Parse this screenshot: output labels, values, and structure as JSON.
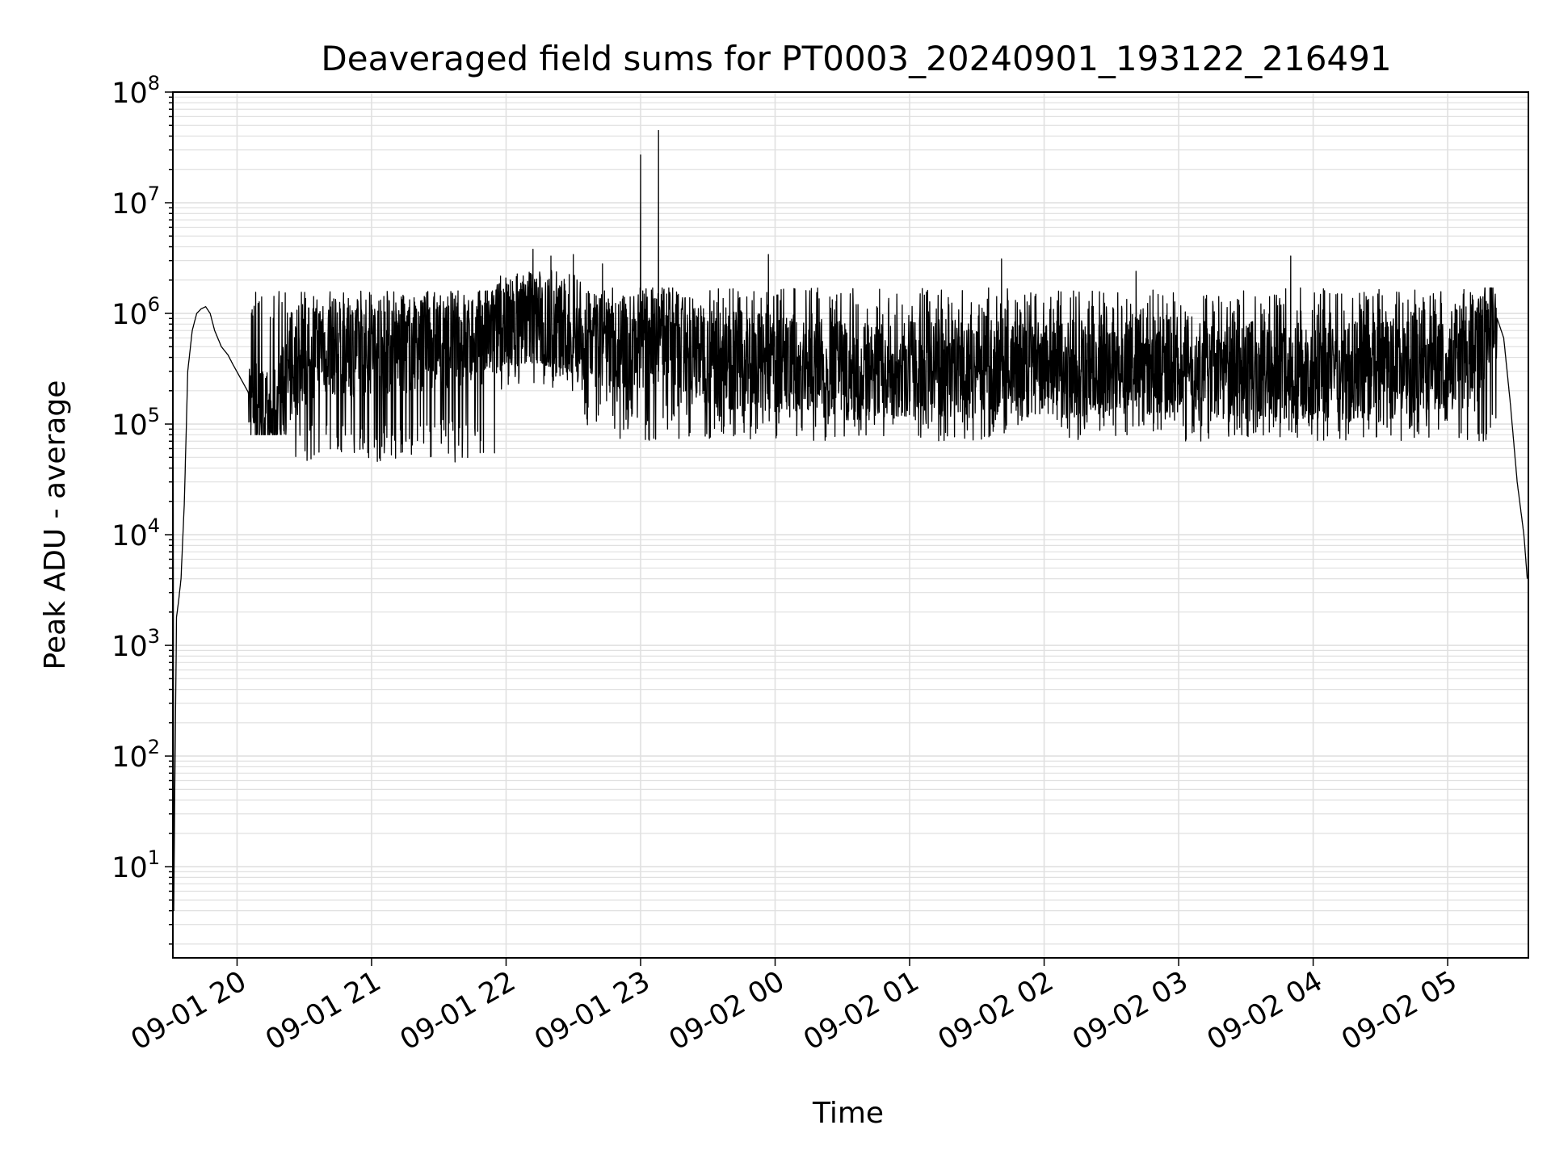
{
  "chart_data": {
    "type": "line",
    "title": "Deaveraged field sums for PT0003_20240901_193122_216491",
    "xlabel": "Time",
    "ylabel": "Peak ADU - average",
    "yscale": "log",
    "ylim": [
      1.5,
      100000000
    ],
    "xlim": [
      "2024-09-01 19:31:22",
      "2024-09-02 05:36:00"
    ],
    "x_ticks": [
      "09-01 20",
      "09-01 21",
      "09-01 22",
      "09-01 23",
      "09-02 00",
      "09-02 01",
      "09-02 02",
      "09-02 03",
      "09-02 04",
      "09-02 05"
    ],
    "y_ticks": [
      {
        "base": "10",
        "exp": "1",
        "value": 10
      },
      {
        "base": "10",
        "exp": "2",
        "value": 100
      },
      {
        "base": "10",
        "exp": "3",
        "value": 1000
      },
      {
        "base": "10",
        "exp": "4",
        "value": 10000
      },
      {
        "base": "10",
        "exp": "5",
        "value": 100000
      },
      {
        "base": "10",
        "exp": "6",
        "value": 1000000
      },
      {
        "base": "10",
        "exp": "7",
        "value": 10000000
      },
      {
        "base": "10",
        "exp": "8",
        "value": 100000000
      }
    ],
    "grid": true,
    "line_color": "#000000",
    "grid_color": "#e0e0e0",
    "series": [
      {
        "x": [
          "2024-09-01 19:31:30",
          "2024-09-01 19:31:45",
          "2024-09-01 19:32:10",
          "2024-09-01 19:33:00",
          "2024-09-01 19:34:00",
          "2024-09-01 19:35:00",
          "2024-09-01 19:36:30",
          "2024-09-01 19:38:00",
          "2024-09-01 19:40:00",
          "2024-09-01 19:42:00",
          "2024-09-01 19:44:00",
          "2024-09-01 19:46:00",
          "2024-09-01 19:48:00",
          "2024-09-01 19:50:00",
          "2024-09-01 19:53:00",
          "2024-09-01 19:56:00",
          "2024-09-01 19:58:00",
          "2024-09-01 20:02:00",
          "2024-09-01 20:08:00",
          "2024-09-01 20:15:00",
          "2024-09-01 20:25:00",
          "2024-09-01 20:35:00",
          "2024-09-01 20:50:00",
          "2024-09-01 21:10:00",
          "2024-09-01 21:30:00",
          "2024-09-01 21:50:00",
          "2024-09-01 22:10:00",
          "2024-09-01 22:30:00",
          "2024-09-01 22:50:00",
          "2024-09-01 23:10:00",
          "2024-09-01 23:30:00",
          "2024-09-02 00:00:00",
          "2024-09-02 00:30:00",
          "2024-09-02 01:00:00",
          "2024-09-02 01:30:00",
          "2024-09-02 02:00:00",
          "2024-09-02 02:30:00",
          "2024-09-02 03:00:00",
          "2024-09-02 03:30:00",
          "2024-09-02 04:00:00",
          "2024-09-02 04:30:00",
          "2024-09-02 05:00:00",
          "2024-09-02 05:15:00",
          "2024-09-02 05:20:00",
          "2024-09-02 05:25:00",
          "2024-09-02 05:28:00",
          "2024-09-02 05:31:00",
          "2024-09-02 05:34:00",
          "2024-09-02 05:35:30"
        ],
        "y": [
          130000,
          4,
          40,
          1800,
          2600,
          4000,
          20000,
          300000,
          700000,
          1000000,
          1100000,
          1150000,
          1000000,
          700000,
          500000,
          420000,
          350000,
          250000,
          150000,
          100000,
          300000,
          500000,
          500000,
          500000,
          600000,
          600000,
          1000000,
          600000,
          500000,
          700000,
          400000,
          350000,
          300000,
          300000,
          350000,
          300000,
          350000,
          350000,
          300000,
          300000,
          300000,
          400000,
          600000,
          1200000,
          600000,
          150000,
          30000,
          10000,
          4000
        ],
        "noise": {
          "segments": [
            {
              "from": "2024-09-01 20:05:00",
              "to": "2024-09-01 20:25:00",
              "low": 80000,
              "high": 1600000
            },
            {
              "from": "2024-09-01 20:25:00",
              "to": "2024-09-01 21:55:00",
              "low": 45000,
              "high": 1600000
            },
            {
              "from": "2024-09-01 21:55:00",
              "to": "2024-09-01 22:35:00",
              "low": 200000,
              "high": 2500000
            },
            {
              "from": "2024-09-01 22:35:00",
              "to": "2024-09-02 05:22:00",
              "low": 70000,
              "high": 1700000
            }
          ],
          "spikes": [
            {
              "x": "2024-09-01 22:12:00",
              "y": 3800000
            },
            {
              "x": "2024-09-01 22:20:00",
              "y": 3300000
            },
            {
              "x": "2024-09-01 22:30:00",
              "y": 3400000
            },
            {
              "x": "2024-09-01 22:43:00",
              "y": 2800000
            },
            {
              "x": "2024-09-01 23:00:00",
              "y": 27000000
            },
            {
              "x": "2024-09-01 23:08:00",
              "y": 45000000
            },
            {
              "x": "2024-09-01 23:57:00",
              "y": 3400000
            },
            {
              "x": "2024-09-02 01:41:00",
              "y": 3100000
            },
            {
              "x": "2024-09-02 02:41:00",
              "y": 2400000
            },
            {
              "x": "2024-09-02 03:50:00",
              "y": 3300000
            }
          ]
        }
      }
    ]
  }
}
